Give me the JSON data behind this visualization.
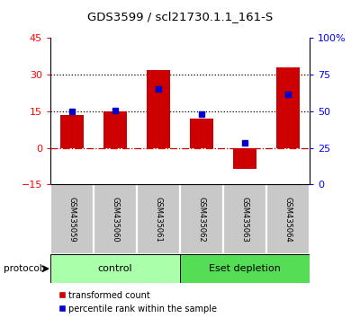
{
  "title": "GDS3599 / scl21730.1.1_161-S",
  "samples": [
    "GSM435059",
    "GSM435060",
    "GSM435061",
    "GSM435062",
    "GSM435063",
    "GSM435064"
  ],
  "red_values": [
    13.5,
    15.0,
    32.0,
    12.0,
    -8.5,
    33.0
  ],
  "blue_values": [
    15.0,
    15.5,
    24.0,
    14.0,
    2.0,
    22.0
  ],
  "groups": [
    {
      "label": "control",
      "start": 0,
      "end": 3,
      "color": "#AAFFAA"
    },
    {
      "label": "Eset depletion",
      "start": 3,
      "end": 6,
      "color": "#55DD55"
    }
  ],
  "ylim_left": [
    -15,
    45
  ],
  "ylim_right": [
    0,
    100
  ],
  "yticks_left": [
    -15,
    0,
    15,
    30,
    45
  ],
  "yticks_right": [
    0,
    25,
    50,
    75,
    100
  ],
  "ytick_labels_right": [
    "0",
    "25",
    "50",
    "75",
    "100%"
  ],
  "red_color": "#CC0000",
  "blue_color": "#0000CC",
  "zero_line_color": "#CC0000",
  "dotted_line_color": "#000000",
  "bg_label": "#C8C8C8",
  "bar_width": 0.55
}
